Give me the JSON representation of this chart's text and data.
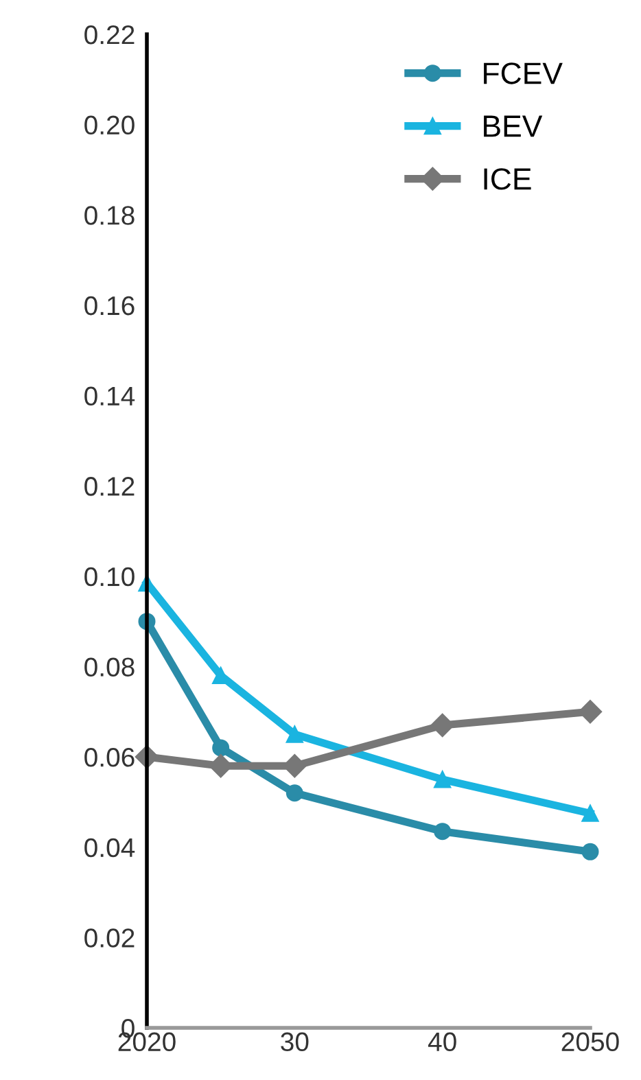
{
  "chart_data": {
    "type": "line",
    "x": [
      2020,
      2025,
      2030,
      2040,
      2050
    ],
    "series": [
      {
        "name": "FCEV",
        "color": "#2a8ca8",
        "marker": "circle",
        "values": [
          0.09,
          0.062,
          0.052,
          0.0435,
          0.039
        ]
      },
      {
        "name": "BEV",
        "color": "#1ab4e0",
        "marker": "triangle",
        "values": [
          0.0985,
          0.078,
          0.065,
          0.055,
          0.0475
        ]
      },
      {
        "name": "ICE",
        "color": "#777777",
        "marker": "diamond",
        "values": [
          0.06,
          0.058,
          0.058,
          0.067,
          0.07
        ]
      }
    ],
    "xlim": [
      2020,
      2050
    ],
    "xticks": [
      2020,
      {
        "value": 2030,
        "label": "30"
      },
      {
        "value": 2040,
        "label": "40"
      },
      2050
    ],
    "ylim": [
      0,
      0.22
    ],
    "yticks": [
      {
        "value": 0,
        "label": "0"
      },
      {
        "value": 0.02,
        "label": "0.02"
      },
      {
        "value": 0.04,
        "label": "0.04"
      },
      {
        "value": 0.06,
        "label": "0.06"
      },
      {
        "value": 0.08,
        "label": "0.08"
      },
      {
        "value": 0.1,
        "label": "0.10"
      },
      {
        "value": 0.12,
        "label": "0.12"
      },
      {
        "value": 0.14,
        "label": "0.14"
      },
      {
        "value": 0.16,
        "label": "0.16"
      },
      {
        "value": 0.18,
        "label": "0.18"
      },
      {
        "value": 0.2,
        "label": "0.20"
      },
      {
        "value": 0.22,
        "label": "0.22"
      }
    ],
    "grid": false,
    "legend": "top right",
    "line_style": "solid"
  }
}
